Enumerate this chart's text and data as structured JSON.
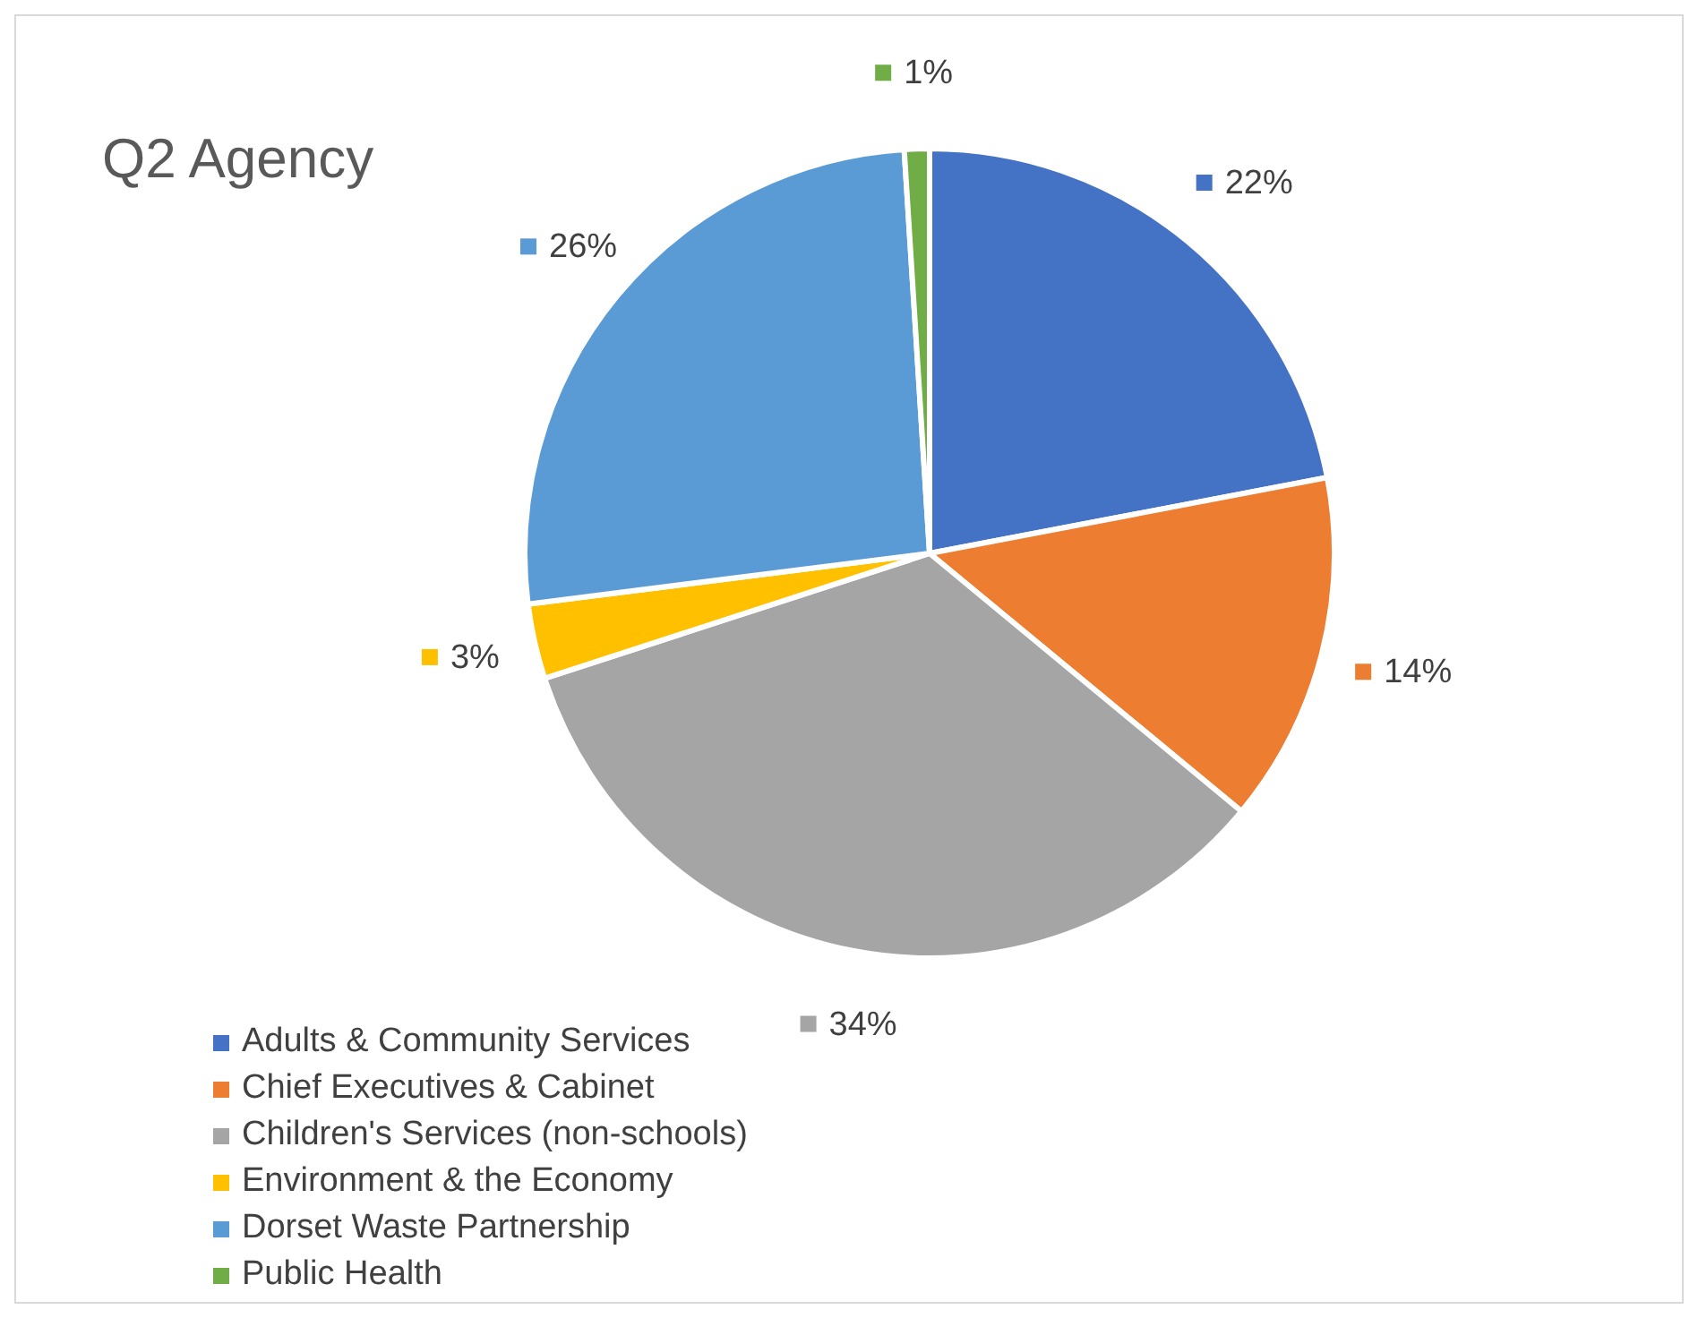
{
  "chart_data": {
    "type": "pie",
    "title": "Q2 Agency",
    "categories": [
      "Adults & Community Services",
      "Chief Executives & Cabinet",
      "Children's Services (non-schools)",
      "Environment & the Economy",
      "Dorset Waste Partnership",
      "Public Health"
    ],
    "values": [
      22,
      14,
      34,
      3,
      26,
      1
    ],
    "value_labels": [
      "22%",
      "14%",
      "34%",
      "3%",
      "26%",
      "1%"
    ],
    "colors": [
      "#4472c4",
      "#ed7d31",
      "#a5a5a5",
      "#ffc000",
      "#5b9bd5",
      "#70ad47"
    ],
    "legend": "bottom left"
  }
}
